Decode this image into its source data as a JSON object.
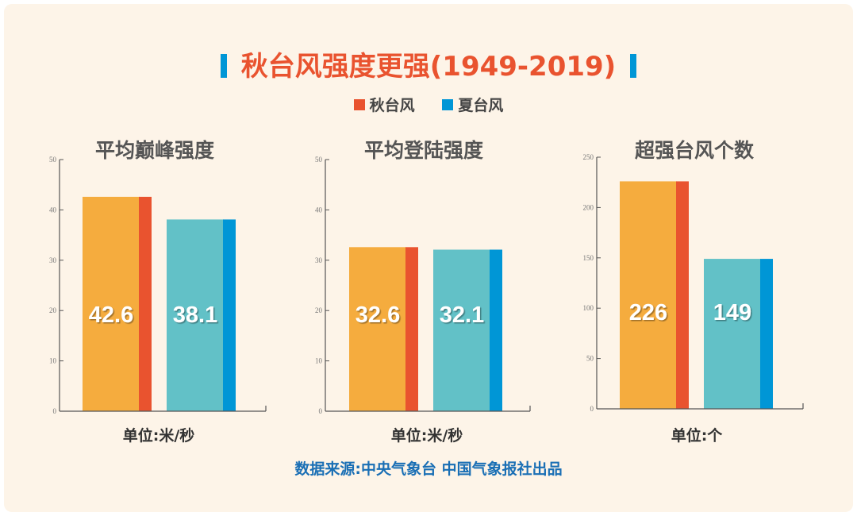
{
  "title": "秋台风强度更强(1949-2019)",
  "legend": [
    {
      "label": "秋台风",
      "color": "#e9532f"
    },
    {
      "label": "夏台风",
      "color": "#0096d6"
    }
  ],
  "source": "数据来源:中央气象台  中国气象报社出品",
  "chart_data": [
    {
      "type": "bar",
      "title": "平均巅峰强度",
      "unit": "单位:米/秒",
      "categories": [
        "秋台风",
        "夏台风"
      ],
      "values": [
        42.6,
        38.1
      ],
      "labels": [
        "42.6",
        "38.1"
      ],
      "ylim": [
        0,
        50
      ],
      "ticks": [
        0,
        10,
        20,
        30,
        40,
        50
      ]
    },
    {
      "type": "bar",
      "title": "平均登陆强度",
      "unit": "单位:米/秒",
      "categories": [
        "秋台风",
        "夏台风"
      ],
      "values": [
        32.6,
        32.1
      ],
      "labels": [
        "32.6",
        "32.1"
      ],
      "ylim": [
        0,
        50
      ],
      "ticks": [
        0,
        10,
        20,
        30,
        40,
        50
      ]
    },
    {
      "type": "bar",
      "title": "超强台风个数",
      "unit": "单位:个",
      "categories": [
        "秋台风",
        "夏台风"
      ],
      "values": [
        226,
        149
      ],
      "labels": [
        "226",
        "149"
      ],
      "ylim": [
        0,
        250
      ],
      "ticks": [
        0,
        50,
        100,
        150,
        200,
        250
      ]
    }
  ],
  "colors": {
    "autumn_front": "#f5ac3e",
    "autumn_side": "#e9532f",
    "summer_front": "#62c1c7",
    "summer_side": "#0096d6"
  }
}
